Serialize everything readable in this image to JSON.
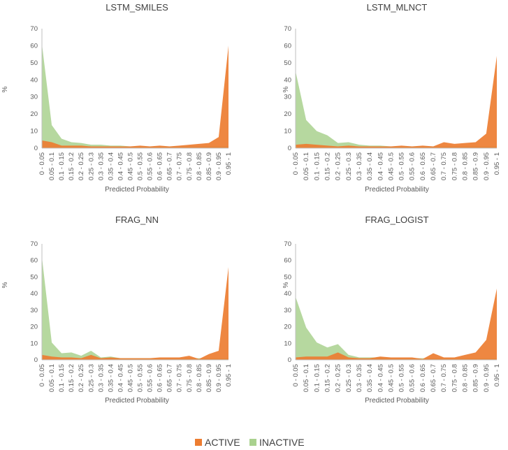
{
  "colors": {
    "active": "#ed7d31",
    "inactive": "#a9d18e",
    "axis": "#bfbfbf",
    "text": "#595959"
  },
  "legend": {
    "items": [
      {
        "label": "ACTIVE",
        "color": "#ed7d31"
      },
      {
        "label": "INACTIVE",
        "color": "#a9d18e"
      }
    ]
  },
  "chart_data": [
    {
      "type": "area",
      "title": "LSTM_SMILES",
      "xlabel": "Predicted Probability",
      "ylabel": "%",
      "ylim": [
        0,
        70
      ],
      "yticks": [
        0,
        10,
        20,
        30,
        40,
        50,
        60,
        70
      ],
      "grid": false,
      "categories": [
        "0 - 0.05",
        "0.05 - 0.1",
        "0.1 - 0.15",
        "0.15 - 0.2",
        "0.2 - 0.25",
        "0.25 - 0.3",
        "0.3 - 0.35",
        "0.35 - 0.4",
        "0.4 - 0.45",
        "0.45 - 0.5",
        "0.5 - 0.55",
        "0.55 - 0.6",
        "0.6 - 0.65",
        "0.65 - 0.7",
        "0.7 - 0.75",
        "0.75 - 0.8",
        "0.8 - 0.85",
        "0.85 - 0.9",
        "0.9 - 0.95",
        "0.95 - 1"
      ],
      "series": [
        {
          "name": "ACTIVE",
          "values": [
            4.5,
            3.5,
            1.5,
            1.5,
            1.5,
            1.0,
            1.0,
            1.0,
            1.0,
            1.0,
            1.5,
            1.0,
            1.5,
            1.0,
            1.5,
            2.0,
            2.5,
            3.0,
            6.5,
            60.0
          ]
        },
        {
          "name": "INACTIVE",
          "values": [
            61.0,
            13.5,
            5.5,
            3.5,
            3.0,
            2.0,
            2.0,
            1.5,
            1.5,
            1.0,
            1.0,
            1.0,
            1.0,
            1.0,
            1.0,
            1.0,
            1.0,
            1.0,
            1.0,
            1.0
          ]
        }
      ]
    },
    {
      "type": "area",
      "title": "LSTM_MLNCT",
      "xlabel": "Predicted Probability",
      "ylabel": "%",
      "ylim": [
        0,
        70
      ],
      "yticks": [
        0,
        10,
        20,
        30,
        40,
        50,
        60,
        70
      ],
      "grid": false,
      "categories": [
        "0 - 0.05",
        "0.05 - 0.1",
        "0.1 - 0.15",
        "0.15 - 0.2",
        "0.2 - 0.25",
        "0.25 - 0.3",
        "0.3 - 0.35",
        "0.35 - 0.4",
        "0.4 - 0.45",
        "0.45 - 0.5",
        "0.5 - 0.55",
        "0.55 - 0.6",
        "0.6 - 0.65",
        "0.65 - 0.7",
        "0.7 - 0.75",
        "0.75 - 0.8",
        "0.8 - 0.85",
        "0.85 - 0.9",
        "0.9 - 0.95",
        "0.95 - 1"
      ],
      "series": [
        {
          "name": "ACTIVE",
          "values": [
            2.0,
            2.5,
            2.0,
            1.5,
            1.0,
            1.5,
            1.0,
            1.0,
            1.0,
            1.0,
            1.5,
            1.0,
            1.5,
            1.0,
            3.5,
            2.5,
            3.0,
            3.5,
            8.5,
            54.0
          ]
        },
        {
          "name": "INACTIVE",
          "values": [
            45.0,
            16.5,
            10.0,
            7.5,
            3.0,
            3.5,
            2.0,
            1.5,
            1.5,
            1.0,
            1.0,
            1.0,
            1.0,
            1.0,
            1.0,
            1.0,
            1.0,
            1.0,
            1.0,
            1.0
          ]
        }
      ]
    },
    {
      "type": "area",
      "title": "FRAG_NN",
      "xlabel": "Predicted Probability",
      "ylabel": "%",
      "ylim": [
        0,
        70
      ],
      "yticks": [
        0,
        10,
        20,
        30,
        40,
        50,
        60,
        70
      ],
      "grid": false,
      "categories": [
        "0 - 0.05",
        "0.05 - 0.1",
        "0.1 - 0.15",
        "0.15 - 0.2",
        "0.2 - 0.25",
        "0.25 - 0.3",
        "0.3 - 0.35",
        "0.35 - 0.4",
        "0.4 - 0.45",
        "0.45 - 0.5",
        "0.5 - 0.55",
        "0.55 - 0.6",
        "0.6 - 0.65",
        "0.65 - 0.7",
        "0.7 - 0.75",
        "0.75 - 0.8",
        "0.8 - 0.85",
        "0.85 - 0.9",
        "0.9 - 0.95",
        "0.95 - 1"
      ],
      "series": [
        {
          "name": "ACTIVE",
          "values": [
            3.0,
            2.0,
            1.5,
            1.5,
            1.0,
            3.0,
            1.0,
            1.5,
            1.0,
            1.0,
            1.0,
            1.0,
            1.5,
            1.5,
            1.5,
            2.5,
            0.5,
            3.5,
            5.5,
            56.0
          ]
        },
        {
          "name": "INACTIVE",
          "values": [
            62.0,
            10.5,
            4.0,
            4.5,
            2.5,
            5.5,
            1.5,
            2.0,
            1.0,
            1.0,
            1.0,
            1.0,
            1.0,
            1.0,
            1.0,
            1.0,
            1.0,
            1.0,
            1.0,
            1.0
          ]
        }
      ]
    },
    {
      "type": "area",
      "title": "FRAG_LOGIST",
      "xlabel": "Predicted Probability",
      "ylabel": "%",
      "ylim": [
        0,
        70
      ],
      "yticks": [
        0,
        10,
        20,
        30,
        40,
        50,
        60,
        70
      ],
      "grid": false,
      "categories": [
        "0 - 0.05",
        "0.05 - 0.1",
        "0.1 - 0.15",
        "0.15 - 0.2",
        "0.2 - 0.25",
        "0.25 - 0.3",
        "0.3 - 0.35",
        "0.35 - 0.4",
        "0.4 - 0.45",
        "0.45 - 0.5",
        "0.5 - 0.55",
        "0.55 - 0.6",
        "0.6 - 0.65",
        "0.65 - 0.7",
        "0.7 - 0.75",
        "0.75 - 0.8",
        "0.8 - 0.85",
        "0.85 - 0.9",
        "0.9 - 0.95",
        "0.95 - 1"
      ],
      "series": [
        {
          "name": "ACTIVE",
          "values": [
            1.5,
            2.0,
            2.0,
            2.0,
            4.5,
            1.5,
            1.0,
            1.0,
            2.0,
            1.5,
            1.5,
            1.5,
            0.5,
            4.0,
            1.5,
            1.5,
            3.0,
            4.5,
            12.0,
            43.0
          ]
        },
        {
          "name": "INACTIVE",
          "values": [
            38.0,
            19.5,
            10.5,
            7.5,
            9.5,
            3.0,
            1.5,
            1.5,
            1.5,
            1.0,
            1.0,
            1.0,
            1.0,
            1.0,
            1.0,
            1.0,
            1.0,
            1.0,
            1.0,
            1.0
          ]
        }
      ]
    }
  ]
}
